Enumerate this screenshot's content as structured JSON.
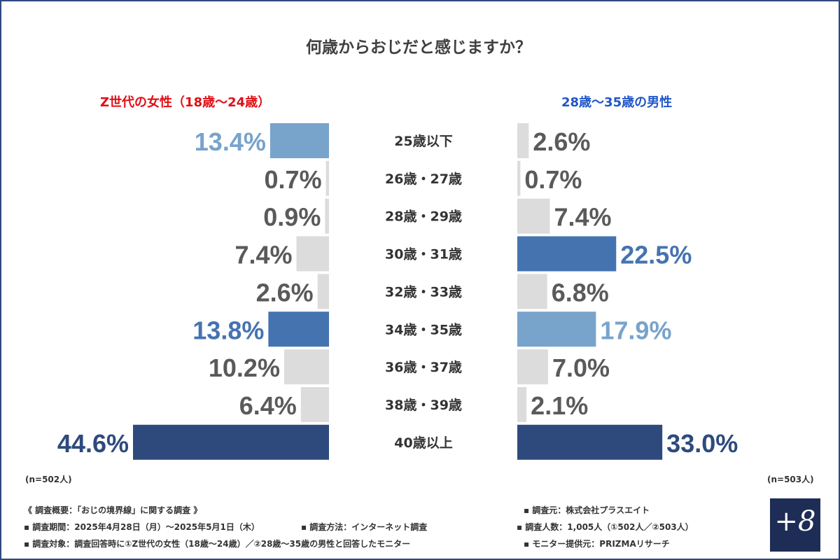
{
  "chart_data": {
    "type": "bar",
    "title": "何歳からおじだと感じますか？",
    "categories": [
      "25歳以下",
      "26歳・27歳",
      "28歳・29歳",
      "30歳・31歳",
      "32歳・33歳",
      "34歳・35歳",
      "36歳・37歳",
      "38歳・39歳",
      "40歳以上"
    ],
    "series": [
      {
        "name": "Z世代の女性（18歳〜24歳）",
        "values": [
          13.4,
          0.7,
          0.9,
          7.4,
          2.6,
          13.8,
          10.2,
          6.4,
          44.6
        ],
        "labels": [
          "13.4%",
          "0.7%",
          "0.9%",
          "7.4%",
          "2.6%",
          "13.8%",
          "10.2%",
          "6.4%",
          "44.6%"
        ],
        "sample": "(n=502人)"
      },
      {
        "name": "28歳〜35歳の男性",
        "values": [
          2.6,
          0.7,
          7.4,
          22.5,
          6.8,
          17.9,
          7.0,
          2.1,
          33.0
        ],
        "labels": [
          "2.6%",
          "0.7%",
          "7.4%",
          "22.5%",
          "6.8%",
          "17.9%",
          "7.0%",
          "2.1%",
          "33.0%"
        ],
        "sample": "(n=503人)"
      }
    ],
    "colors": {
      "first": "#2e4a7d",
      "second": "#4573b0",
      "third": "#78a3cb",
      "other": "#dcdcdc",
      "other_label": "#5a5a5a",
      "left_header": "#e00f16",
      "right_header": "#1f56c9"
    }
  },
  "footer": {
    "overview": "《 調査概要：「おじの境界線」に関する調査 》",
    "period": "▪ 調査期間：2025年4月28日（月）〜2025年5月1日（木）",
    "method": "▪ 調査方法：インターネット調査",
    "target": "▪ 調査対象：調査回答時に①Z世代の女性（18歳〜24歳）／②28歳〜35歳の男性と回答したモニター",
    "source": "▪ 調査元：株式会社プラスエイト",
    "count": "▪ 調査人数：1,005人（①502人／②503人）",
    "provider": "▪ モニター提供元：PRIZMAリサーチ"
  },
  "logo": {
    "text": "+8",
    "icon": "plus-eight-logo"
  }
}
